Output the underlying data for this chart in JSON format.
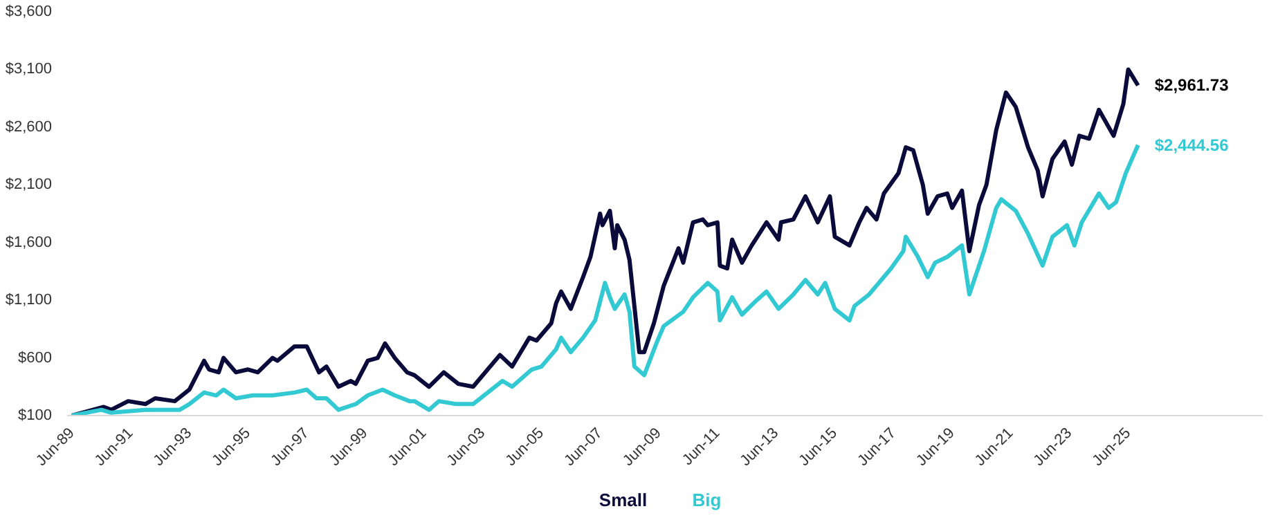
{
  "chart_data": {
    "type": "line",
    "xlim": [
      "1989-04",
      "2030-01"
    ],
    "xticks": [
      {
        "value": "1989-06",
        "label": "Jun-89"
      },
      {
        "value": "1991-06",
        "label": "Jun-91"
      },
      {
        "value": "1993-06",
        "label": "Jun-93"
      },
      {
        "value": "1995-06",
        "label": "Jun-95"
      },
      {
        "value": "1997-06",
        "label": "Jun-97"
      },
      {
        "value": "1999-06",
        "label": "Jun-99"
      },
      {
        "value": "2001-06",
        "label": "Jun-01"
      },
      {
        "value": "2003-06",
        "label": "Jun-03"
      },
      {
        "value": "2005-06",
        "label": "Jun-05"
      },
      {
        "value": "2007-06",
        "label": "Jun-07"
      },
      {
        "value": "2009-06",
        "label": "Jun-09"
      },
      {
        "value": "2011-06",
        "label": "Jun-11"
      },
      {
        "value": "2013-06",
        "label": "Jun-13"
      },
      {
        "value": "2015-06",
        "label": "Jun-15"
      },
      {
        "value": "2017-06",
        "label": "Jun-17"
      },
      {
        "value": "2019-06",
        "label": "Jun-19"
      },
      {
        "value": "2021-06",
        "label": "Jun-21"
      },
      {
        "value": "2023-06",
        "label": "Jun-23"
      },
      {
        "value": "2025-06",
        "label": "Jun-25"
      }
    ],
    "ylim": [
      100,
      3600
    ],
    "yticks": [
      {
        "value": 100,
        "label": "$100"
      },
      {
        "value": 600,
        "label": "$600"
      },
      {
        "value": 1100,
        "label": "$1,100"
      },
      {
        "value": 1600,
        "label": "$1,600"
      },
      {
        "value": 2100,
        "label": "$2,100"
      },
      {
        "value": 2600,
        "label": "$2,600"
      },
      {
        "value": 3100,
        "label": "$3,100"
      },
      {
        "value": 3600,
        "label": "$3,600"
      }
    ],
    "grid": false,
    "legend": "bottom",
    "line_style": "solid",
    "annotations": [
      {
        "text": "$2,961.73",
        "x": "2025-10",
        "y": 2961.73
      },
      {
        "text": "$2,444.56",
        "x": "2025-10",
        "y": 2444.56
      }
    ],
    "series": [
      {
        "name": "Small",
        "color": "#0b0b3b",
        "x": [
          "1989-06",
          "1990-07",
          "1990-10",
          "1991-05",
          "1991-12",
          "1992-04",
          "1992-12",
          "1993-06",
          "1993-12",
          "1994-02",
          "1994-06",
          "1994-08",
          "1995-01",
          "1995-06",
          "1995-10",
          "1996-04",
          "1996-06",
          "1997-01",
          "1997-06",
          "1997-11",
          "1998-02",
          "1998-07",
          "1998-12",
          "1999-02",
          "1999-07",
          "1999-11",
          "2000-02",
          "2000-06",
          "2000-11",
          "2001-02",
          "2001-08",
          "2002-02",
          "2002-08",
          "2003-02",
          "2004-01",
          "2004-06",
          "2005-01",
          "2005-04",
          "2005-10",
          "2005-12",
          "2006-02",
          "2006-06",
          "2006-11",
          "2007-02",
          "2007-06",
          "2007-07",
          "2007-10",
          "2007-12",
          "2008-01",
          "2008-04",
          "2008-06",
          "2008-10",
          "2008-12",
          "2009-04",
          "2009-08",
          "2010-02",
          "2010-04",
          "2010-08",
          "2010-12",
          "2011-02",
          "2011-06",
          "2011-07",
          "2011-10",
          "2011-12",
          "2012-04",
          "2012-08",
          "2013-02",
          "2013-07",
          "2013-08",
          "2014-01",
          "2014-06",
          "2014-11",
          "2015-04",
          "2015-06",
          "2015-12",
          "2016-04",
          "2016-07",
          "2016-11",
          "2017-02",
          "2017-08",
          "2017-11",
          "2018-02",
          "2018-06",
          "2018-08",
          "2018-12",
          "2019-04",
          "2019-06",
          "2019-10",
          "2020-01",
          "2020-05",
          "2020-08",
          "2020-12",
          "2021-04",
          "2021-08",
          "2022-01",
          "2022-05",
          "2022-07",
          "2022-11",
          "2023-04",
          "2023-07",
          "2023-10",
          "2024-02",
          "2024-06",
          "2024-12",
          "2025-04",
          "2025-06",
          "2025-10"
        ],
        "values": [
          100,
          175,
          150,
          225,
          200,
          250,
          225,
          325,
          575,
          500,
          475,
          600,
          475,
          500,
          475,
          600,
          575,
          700,
          700,
          475,
          525,
          350,
          400,
          375,
          575,
          600,
          725,
          600,
          475,
          450,
          350,
          475,
          375,
          350,
          625,
          525,
          775,
          750,
          900,
          1075,
          1175,
          1025,
          1300,
          1475,
          1850,
          1750,
          1875,
          1550,
          1750,
          1625,
          1450,
          650,
          650,
          900,
          1225,
          1550,
          1425,
          1775,
          1800,
          1750,
          1775,
          1400,
          1375,
          1625,
          1425,
          1575,
          1775,
          1625,
          1775,
          1800,
          2000,
          1775,
          2000,
          1650,
          1575,
          1775,
          1900,
          1800,
          2025,
          2200,
          2425,
          2400,
          2100,
          1850,
          2000,
          2025,
          1900,
          2050,
          1525,
          1925,
          2100,
          2575,
          2900,
          2775,
          2425,
          2225,
          2000,
          2325,
          2475,
          2275,
          2525,
          2500,
          2750,
          2525,
          2800,
          3100,
          2961.73
        ]
      },
      {
        "name": "Big",
        "color": "#33c9d3",
        "x": [
          "1989-06",
          "1990-06",
          "1990-10",
          "1991-12",
          "1993-02",
          "1993-06",
          "1993-12",
          "1994-05",
          "1994-08",
          "1995-01",
          "1995-08",
          "1996-04",
          "1997-01",
          "1997-06",
          "1997-10",
          "1998-02",
          "1998-07",
          "1999-02",
          "1999-07",
          "2000-01",
          "2000-06",
          "2000-12",
          "2001-02",
          "2001-08",
          "2001-12",
          "2002-07",
          "2003-02",
          "2004-02",
          "2004-06",
          "2005-02",
          "2005-06",
          "2005-12",
          "2006-02",
          "2006-06",
          "2006-11",
          "2007-04",
          "2007-08",
          "2007-10",
          "2007-12",
          "2008-04",
          "2008-06",
          "2008-08",
          "2008-12",
          "2009-05",
          "2009-08",
          "2010-04",
          "2010-08",
          "2011-02",
          "2011-06",
          "2011-07",
          "2011-12",
          "2012-04",
          "2012-10",
          "2013-02",
          "2013-07",
          "2014-01",
          "2014-06",
          "2014-11",
          "2015-02",
          "2015-06",
          "2015-12",
          "2016-02",
          "2016-08",
          "2017-05",
          "2017-10",
          "2017-11",
          "2018-04",
          "2018-08",
          "2018-11",
          "2019-04",
          "2019-10",
          "2020-01",
          "2020-07",
          "2020-12",
          "2021-02",
          "2021-08",
          "2022-01",
          "2022-07",
          "2022-11",
          "2023-05",
          "2023-08",
          "2023-11",
          "2024-06",
          "2024-10",
          "2025-01",
          "2025-05",
          "2025-10"
        ],
        "values": [
          100,
          150,
          125,
          150,
          150,
          200,
          300,
          275,
          325,
          250,
          275,
          275,
          300,
          325,
          250,
          250,
          150,
          200,
          275,
          325,
          275,
          225,
          225,
          150,
          225,
          200,
          200,
          400,
          350,
          500,
          525,
          675,
          775,
          650,
          775,
          925,
          1250,
          1125,
          1025,
          1150,
          1000,
          525,
          450,
          725,
          875,
          1000,
          1125,
          1250,
          1175,
          925,
          1125,
          975,
          1100,
          1175,
          1025,
          1150,
          1275,
          1150,
          1250,
          1025,
          925,
          1050,
          1150,
          1375,
          1525,
          1650,
          1475,
          1300,
          1425,
          1475,
          1575,
          1150,
          1525,
          1900,
          1975,
          1875,
          1675,
          1400,
          1650,
          1750,
          1575,
          1775,
          2025,
          1900,
          1950,
          2200,
          2444.56
        ]
      }
    ]
  }
}
